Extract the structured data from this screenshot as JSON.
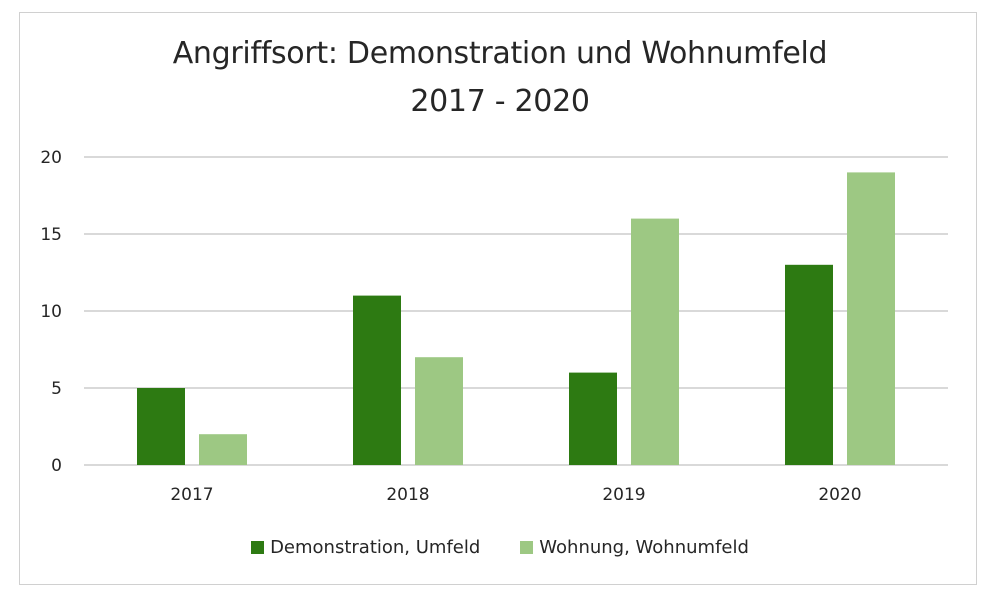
{
  "chart_data": {
    "type": "bar",
    "title": [
      "Angriffsort: Demonstration und Wohnumfeld",
      "2017 - 2020"
    ],
    "categories": [
      "2017",
      "2018",
      "2019",
      "2020"
    ],
    "series": [
      {
        "name": "Demonstration, Umfeld",
        "color": "#2d7a12",
        "values": [
          5,
          11,
          6,
          13
        ]
      },
      {
        "name": "Wohnung, Wohnumfeld",
        "color": "#9dc883",
        "values": [
          2,
          7,
          16,
          19
        ]
      }
    ],
    "ylim": [
      0,
      20
    ],
    "yticks": [
      0,
      5,
      10,
      15,
      20
    ],
    "grid": true,
    "legend_position": "bottom",
    "gridline_color": "#d9d9d9"
  }
}
